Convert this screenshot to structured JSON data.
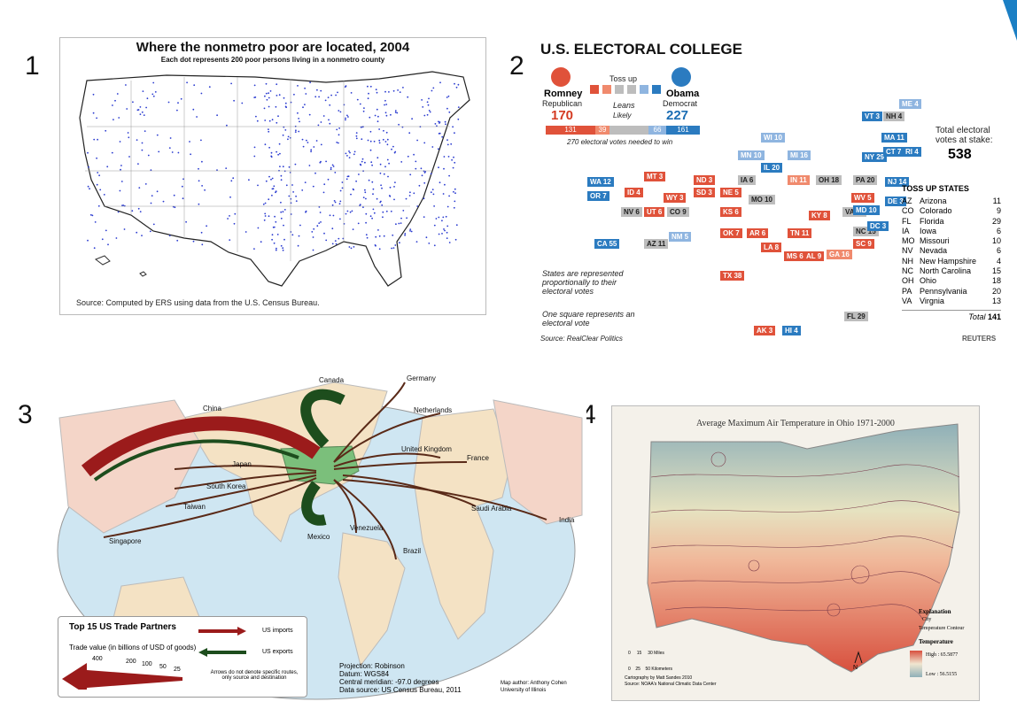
{
  "labels": [
    "1",
    "2",
    "3",
    "4"
  ],
  "map1": {
    "title": "Where the nonmetro poor are located, 2004",
    "subtitle": "Each dot represents 200 poor persons living in a nonmetro county",
    "source": "Source: Computed by ERS using data from the U.S. Census Bureau."
  },
  "map2": {
    "title": "U.S. ELECTORAL COLLEGE",
    "romney": {
      "name": "Romney",
      "party": "Republican",
      "votes": "170"
    },
    "obama": {
      "name": "Obama",
      "party": "Democrat",
      "votes": "227"
    },
    "tossup_label": "Toss up",
    "leans_label": "Leans",
    "likely_label": "Likely",
    "bar_values": [
      "131",
      "39",
      "66",
      "161"
    ],
    "needed_note": "270 electoral votes needed to win",
    "total_label": "Total electoral votes at stake:",
    "total_value": "538",
    "tossup_header": "TOSS UP STATES",
    "tossup_states": [
      {
        "abbr": "AZ",
        "name": "Arizona",
        "votes": "11"
      },
      {
        "abbr": "CO",
        "name": "Colorado",
        "votes": "9"
      },
      {
        "abbr": "FL",
        "name": "Florida",
        "votes": "29"
      },
      {
        "abbr": "IA",
        "name": "Iowa",
        "votes": "6"
      },
      {
        "abbr": "MO",
        "name": "Missouri",
        "votes": "10"
      },
      {
        "abbr": "NV",
        "name": "Nevada",
        "votes": "6"
      },
      {
        "abbr": "NH",
        "name": "New Hampshire",
        "votes": "4"
      },
      {
        "abbr": "NC",
        "name": "North Carolina",
        "votes": "15"
      },
      {
        "abbr": "OH",
        "name": "Ohio",
        "votes": "18"
      },
      {
        "abbr": "PA",
        "name": "Pennsylvania",
        "votes": "20"
      },
      {
        "abbr": "VA",
        "name": "Virgnia",
        "votes": "13"
      }
    ],
    "total_row_label": "Total",
    "total_row_value": "141",
    "note1": "States are represented proportionally to their electoral votes",
    "note2": "One square represents an electoral vote",
    "source": "Source: RealClear Politics",
    "brand": "REUTERS",
    "states": [
      {
        "label": "WA 12",
        "color": "#2b7bc0"
      },
      {
        "label": "OR 7",
        "color": "#2b7bc0"
      },
      {
        "label": "CA 55",
        "color": "#2b7bc0"
      },
      {
        "label": "NV 6",
        "color": "#bdbdbd"
      },
      {
        "label": "ID 4",
        "color": "#e0523a"
      },
      {
        "label": "MT 3",
        "color": "#e0523a"
      },
      {
        "label": "UT 6",
        "color": "#e0523a"
      },
      {
        "label": "AZ 11",
        "color": "#bdbdbd"
      },
      {
        "label": "CO 9",
        "color": "#bdbdbd"
      },
      {
        "label": "NM 5",
        "color": "#8fb5e0"
      },
      {
        "label": "WY 3",
        "color": "#e0523a"
      },
      {
        "label": "ND 3",
        "color": "#e0523a"
      },
      {
        "label": "SD 3",
        "color": "#e0523a"
      },
      {
        "label": "NE 5",
        "color": "#e0523a"
      },
      {
        "label": "KS 6",
        "color": "#e0523a"
      },
      {
        "label": "OK 7",
        "color": "#e0523a"
      },
      {
        "label": "TX 38",
        "color": "#e0523a"
      },
      {
        "label": "MN 10",
        "color": "#8fb5e0"
      },
      {
        "label": "IA 6",
        "color": "#bdbdbd"
      },
      {
        "label": "MO 10",
        "color": "#bdbdbd"
      },
      {
        "label": "AR 6",
        "color": "#e0523a"
      },
      {
        "label": "LA 8",
        "color": "#e0523a"
      },
      {
        "label": "WI 10",
        "color": "#8fb5e0"
      },
      {
        "label": "IL 20",
        "color": "#2b7bc0"
      },
      {
        "label": "MI 16",
        "color": "#8fb5e0"
      },
      {
        "label": "IN 11",
        "color": "#f08a6d"
      },
      {
        "label": "OH 18",
        "color": "#bdbdbd"
      },
      {
        "label": "KY 8",
        "color": "#e0523a"
      },
      {
        "label": "TN 11",
        "color": "#e0523a"
      },
      {
        "label": "MS 6",
        "color": "#e0523a"
      },
      {
        "label": "AL 9",
        "color": "#e0523a"
      },
      {
        "label": "GA 16",
        "color": "#f08a6d"
      },
      {
        "label": "FL 29",
        "color": "#bdbdbd"
      },
      {
        "label": "SC 9",
        "color": "#e0523a"
      },
      {
        "label": "NC 15",
        "color": "#bdbdbd"
      },
      {
        "label": "VA 13",
        "color": "#bdbdbd"
      },
      {
        "label": "WV 5",
        "color": "#e0523a"
      },
      {
        "label": "PA 20",
        "color": "#bdbdbd"
      },
      {
        "label": "MD 10",
        "color": "#2b7bc0"
      },
      {
        "label": "DC 3",
        "color": "#2b7bc0"
      },
      {
        "label": "DE 3",
        "color": "#2b7bc0"
      },
      {
        "label": "NJ 14",
        "color": "#2b7bc0"
      },
      {
        "label": "NY 29",
        "color": "#2b7bc0"
      },
      {
        "label": "CT 7",
        "color": "#2b7bc0"
      },
      {
        "label": "RI 4",
        "color": "#2b7bc0"
      },
      {
        "label": "MA 11",
        "color": "#2b7bc0"
      },
      {
        "label": "VT 3",
        "color": "#2b7bc0"
      },
      {
        "label": "NH 4",
        "color": "#bdbdbd"
      },
      {
        "label": "ME 4",
        "color": "#8fb5e0"
      },
      {
        "label": "AK 3",
        "color": "#e0523a"
      },
      {
        "label": "HI 4",
        "color": "#2b7bc0"
      }
    ]
  },
  "map3": {
    "partners": [
      "Canada",
      "Germany",
      "China",
      "Netherlands",
      "Japan",
      "United Kingdom",
      "France",
      "South Korea",
      "Taiwan",
      "Saudi Arabia",
      "India",
      "Venezuela",
      "Singapore",
      "Mexico",
      "Brazil"
    ],
    "legend_title": "Top 15 US Trade Partners",
    "legend_value": "Trade value (in billions of USD of goods)",
    "imports_label": "US imports",
    "exports_label": "US exports",
    "scale": [
      "400",
      "200",
      "100",
      "50",
      "25"
    ],
    "arrow_note": "Arrows do not denote specific routes, only source and destination",
    "projection": "Projection: Robinson",
    "datum": "Datum: WGS84",
    "meridian": "Central meridian: -97.0 degrees",
    "data_source": "Data source: US Census Bureau, 2011",
    "author": "Map author: Anthony Cohen",
    "university": "University of Illinois"
  },
  "map4": {
    "title": "Average Maximum Air Temperature in Ohio 1971-2000",
    "explanation": "Explanation",
    "city": "City",
    "contour": "Temperature Contour",
    "temperature": "Temperature",
    "high": "High : 65.5877",
    "low": "Low : 56.5155",
    "scale_top": "0     15     30 Miles",
    "scale_bottom": "0    25    50 Kilometers",
    "cartography": "Cartography by Matt Sandes 2010",
    "source": "Source: NOAA's National Climatic Data Center",
    "north": "N"
  }
}
